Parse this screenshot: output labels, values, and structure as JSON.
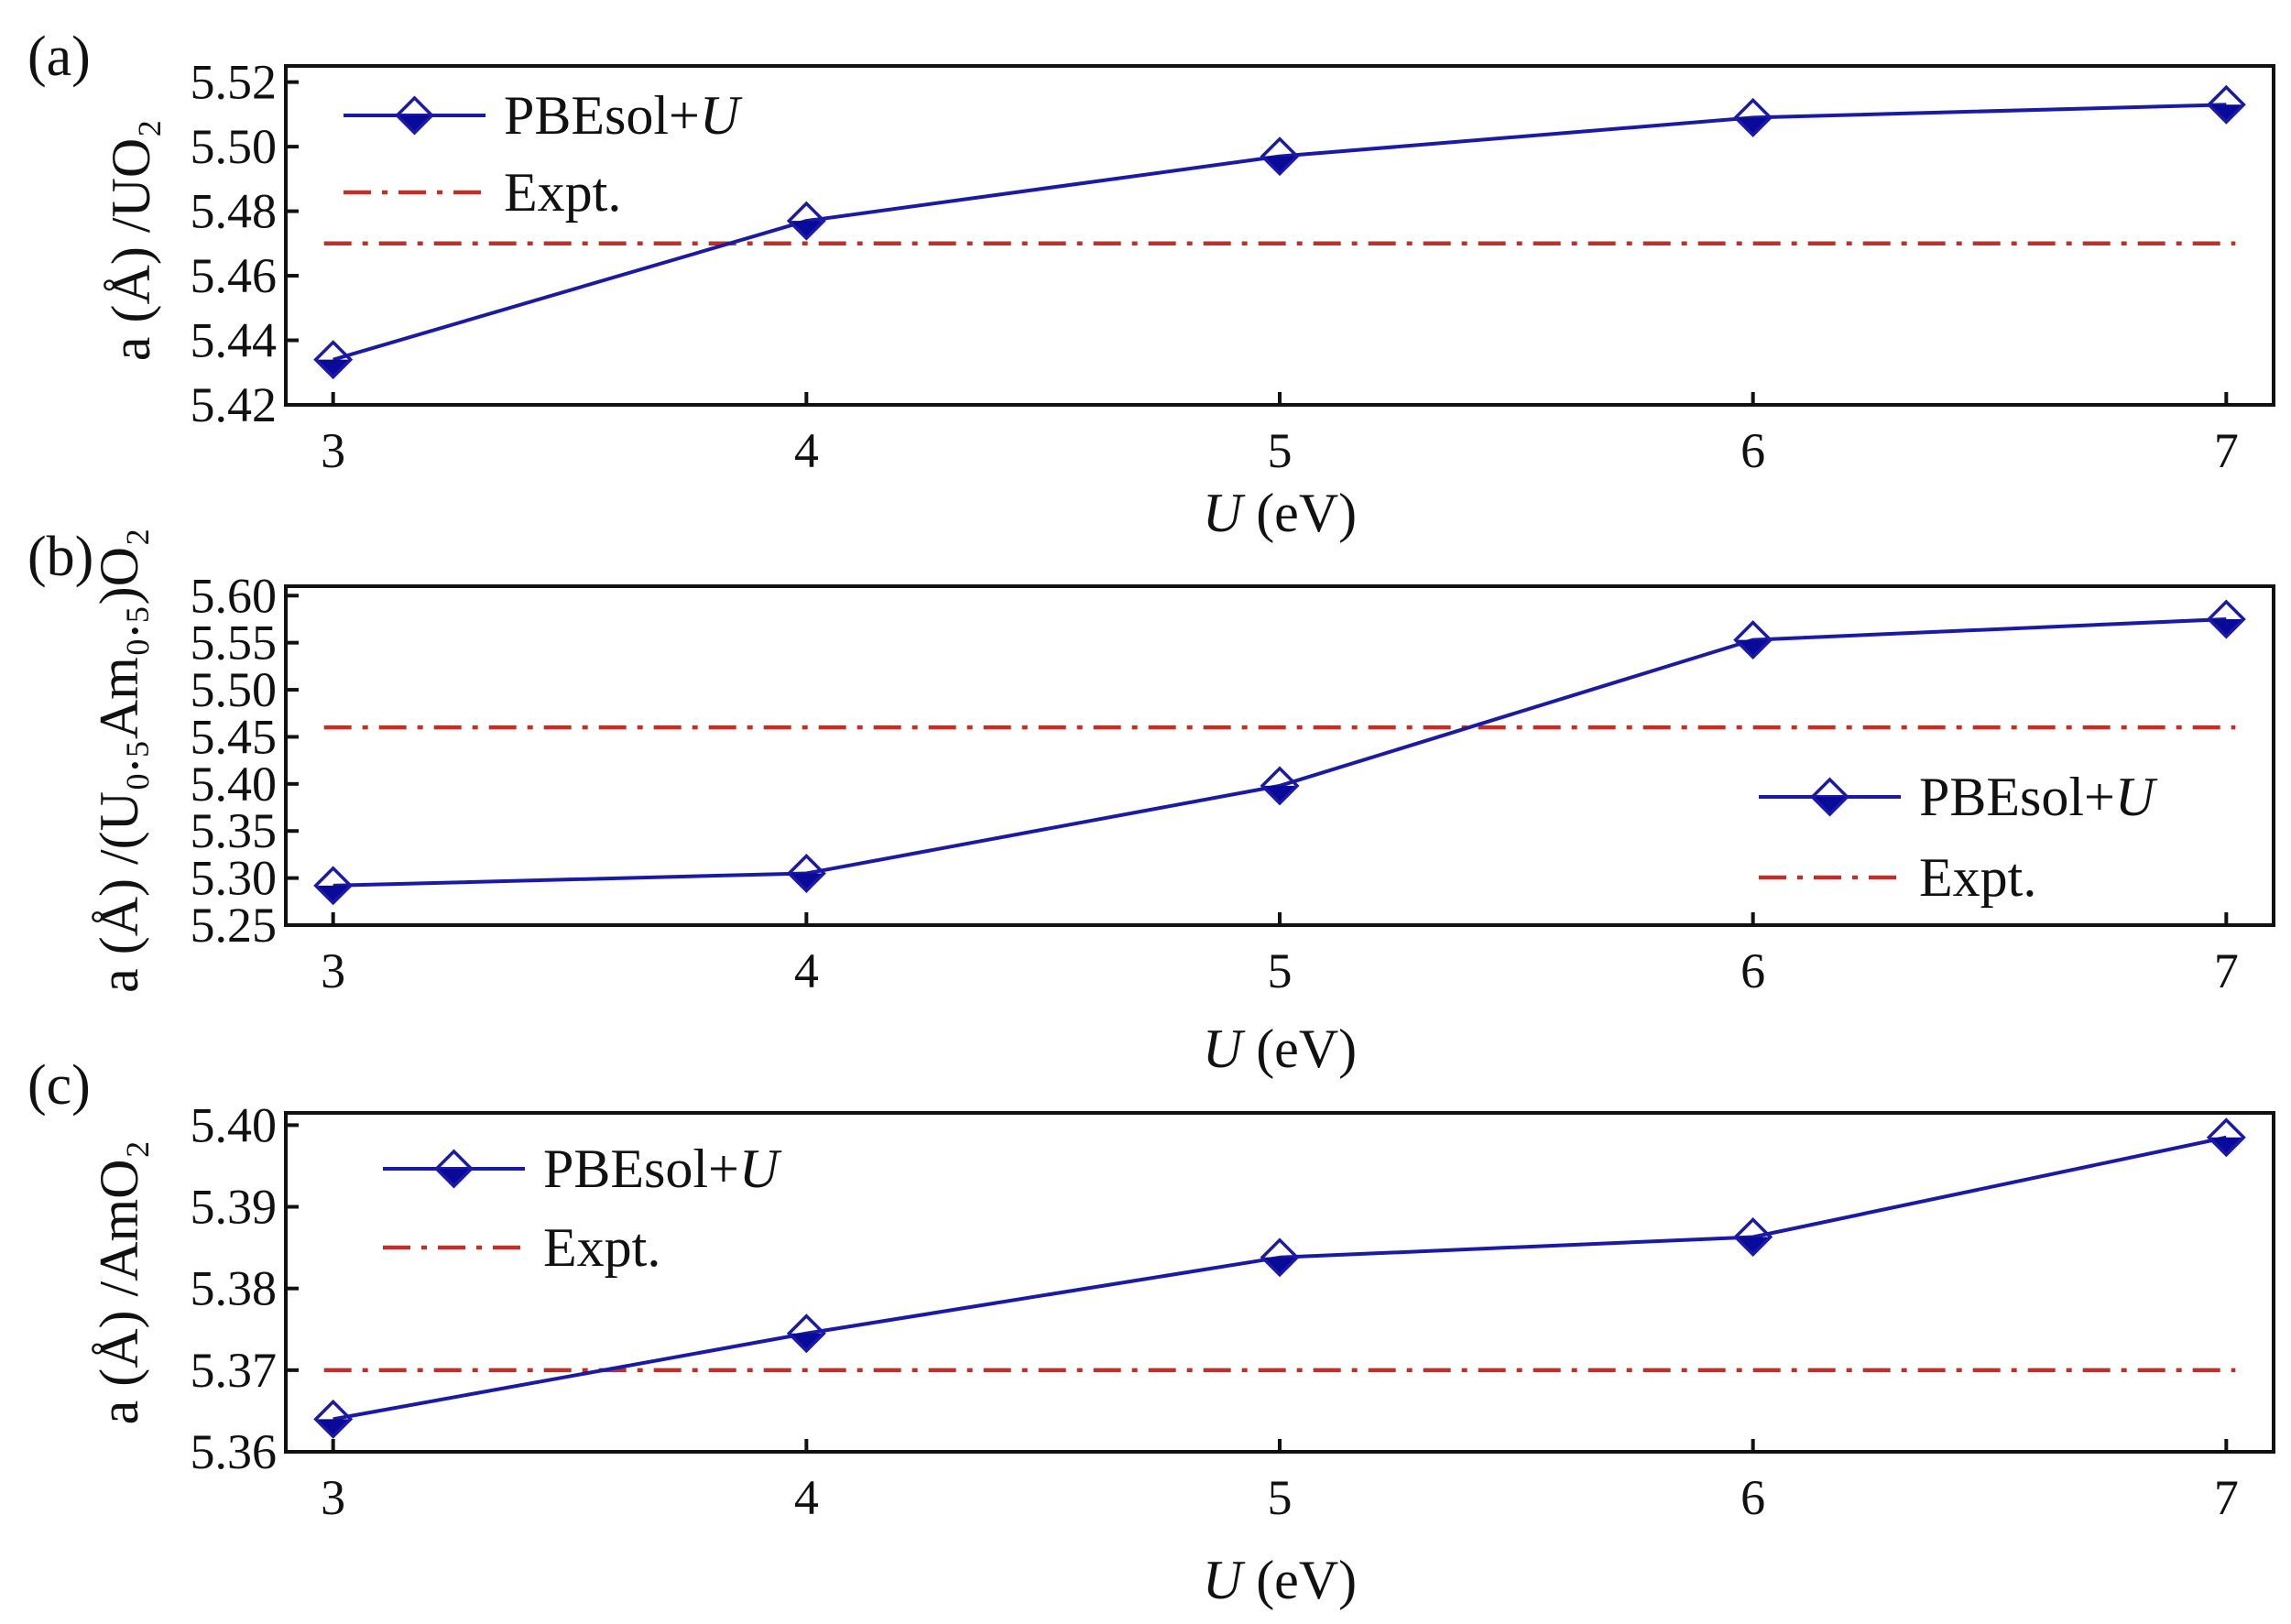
{
  "colors": {
    "series": "#1a1aa6",
    "marker_dark": "#0a0a9a",
    "expt": "#c0302a",
    "axis": "#111111"
  },
  "chart_data": [
    {
      "type": "line",
      "panel_label": "(a)",
      "ylabel": "a (Å) /UO₂",
      "xlabel_italic": "U",
      "xlabel_rest": " (eV)",
      "x": [
        3,
        4,
        5,
        6,
        7
      ],
      "xlim": [
        2.9,
        7.1
      ],
      "ylim": [
        5.42,
        5.525
      ],
      "yticks": [
        5.42,
        5.44,
        5.46,
        5.48,
        5.5,
        5.52
      ],
      "ytick_labels": [
        "5.42",
        "5.44",
        "5.46",
        "5.48",
        "5.50",
        "5.52"
      ],
      "xtick_labels": [
        "3",
        "4",
        "5",
        "6",
        "7"
      ],
      "series": [
        {
          "name_prefix": "PBEsol+",
          "name_italic": "U",
          "values": [
            5.434,
            5.477,
            5.497,
            5.509,
            5.513
          ]
        }
      ],
      "expt": {
        "name": "Expt.",
        "value": 5.47
      },
      "legend": "top-left"
    },
    {
      "type": "line",
      "panel_label": "(b)",
      "ylabel": "a (Å) /(U₀.₅Am₀.₅)O₂",
      "xlabel_italic": "U",
      "xlabel_rest": " (eV)",
      "x": [
        3,
        4,
        5,
        6,
        7
      ],
      "xlim": [
        2.9,
        7.1
      ],
      "ylim": [
        5.25,
        5.61
      ],
      "yticks": [
        5.25,
        5.3,
        5.35,
        5.4,
        5.45,
        5.5,
        5.55,
        5.6
      ],
      "ytick_labels": [
        "5.25",
        "5.30",
        "5.35",
        "5.40",
        "5.45",
        "5.50",
        "5.55",
        "5.60"
      ],
      "xtick_labels": [
        "3",
        "4",
        "5",
        "6",
        "7"
      ],
      "series": [
        {
          "name_prefix": "PBEsol+",
          "name_italic": "U",
          "values": [
            5.292,
            5.305,
            5.398,
            5.553,
            5.575
          ]
        }
      ],
      "expt": {
        "name": "Expt.",
        "value": 5.46
      },
      "legend": "bottom-right"
    },
    {
      "type": "line",
      "panel_label": "(c)",
      "ylabel": "a (Å) /AmO₂",
      "xlabel_italic": "U",
      "xlabel_rest": " (eV)",
      "x": [
        3,
        4,
        5,
        6,
        7
      ],
      "xlim": [
        2.9,
        7.1
      ],
      "ylim": [
        5.36,
        5.4015
      ],
      "yticks": [
        5.36,
        5.37,
        5.38,
        5.39,
        5.4
      ],
      "ytick_labels": [
        "5.36",
        "5.37",
        "5.38",
        "5.39",
        "5.40"
      ],
      "xtick_labels": [
        "3",
        "4",
        "5",
        "6",
        "7"
      ],
      "series": [
        {
          "name_prefix": "PBEsol+",
          "name_italic": "U",
          "values": [
            5.364,
            5.3745,
            5.3838,
            5.3863,
            5.3985
          ]
        }
      ],
      "expt": {
        "name": "Expt.",
        "value": 5.37
      },
      "legend": "top-left"
    }
  ]
}
